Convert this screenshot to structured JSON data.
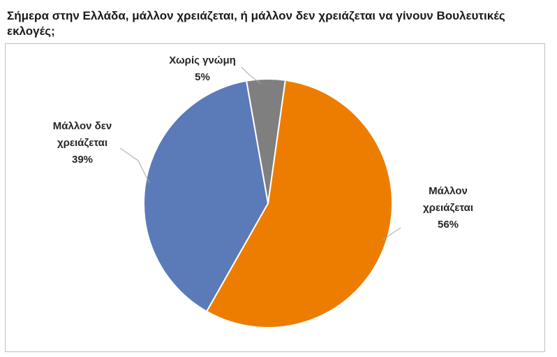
{
  "chart_data": {
    "type": "pie",
    "title": "Σήμερα στην Ελλάδα, μάλλον χρειάζεται, ή μάλλον δεν χρειάζεται να γίνουν Βουλευτικές εκλογές;",
    "slices": [
      {
        "key": "maybe-needed",
        "label_lines": [
          "Μάλλον",
          "χρειάζεται"
        ],
        "value": 56,
        "value_label": "56%",
        "color": "#ED7D00"
      },
      {
        "key": "maybe-not-needed",
        "label_lines": [
          "Μάλλον δεν",
          "χρειάζεται"
        ],
        "value": 39,
        "value_label": "39%",
        "color": "#5B7AB8"
      },
      {
        "key": "no-opinion",
        "label_lines": [
          "Χωρίς γνώμη"
        ],
        "value": 5,
        "value_label": "5%",
        "color": "#7F7F7F"
      }
    ],
    "start_angle_deg": 8,
    "direction": "clockwise",
    "legend": "none",
    "data_labels": "outside-with-leader-lines"
  }
}
